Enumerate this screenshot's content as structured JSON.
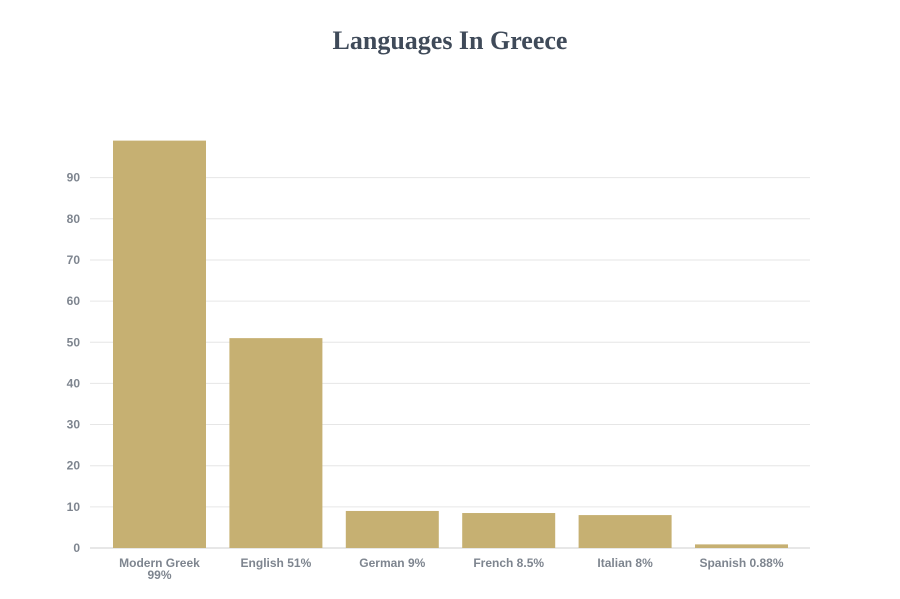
{
  "chart_data": {
    "type": "bar",
    "title": "Languages In Greece",
    "xlabel": "",
    "ylabel": "",
    "categories": [
      "Modern Greek 99%",
      "English 51%",
      "German 9%",
      "French 8.5%",
      "Italian 8%",
      "Spanish 0.88%"
    ],
    "values": [
      99,
      51,
      9,
      8.5,
      8,
      0.88
    ],
    "ylim": [
      0,
      100
    ],
    "yticks": [
      0,
      10,
      20,
      30,
      40,
      50,
      60,
      70,
      80,
      90
    ],
    "grid": true,
    "legend": "none",
    "bar_color": "#c6b072"
  }
}
